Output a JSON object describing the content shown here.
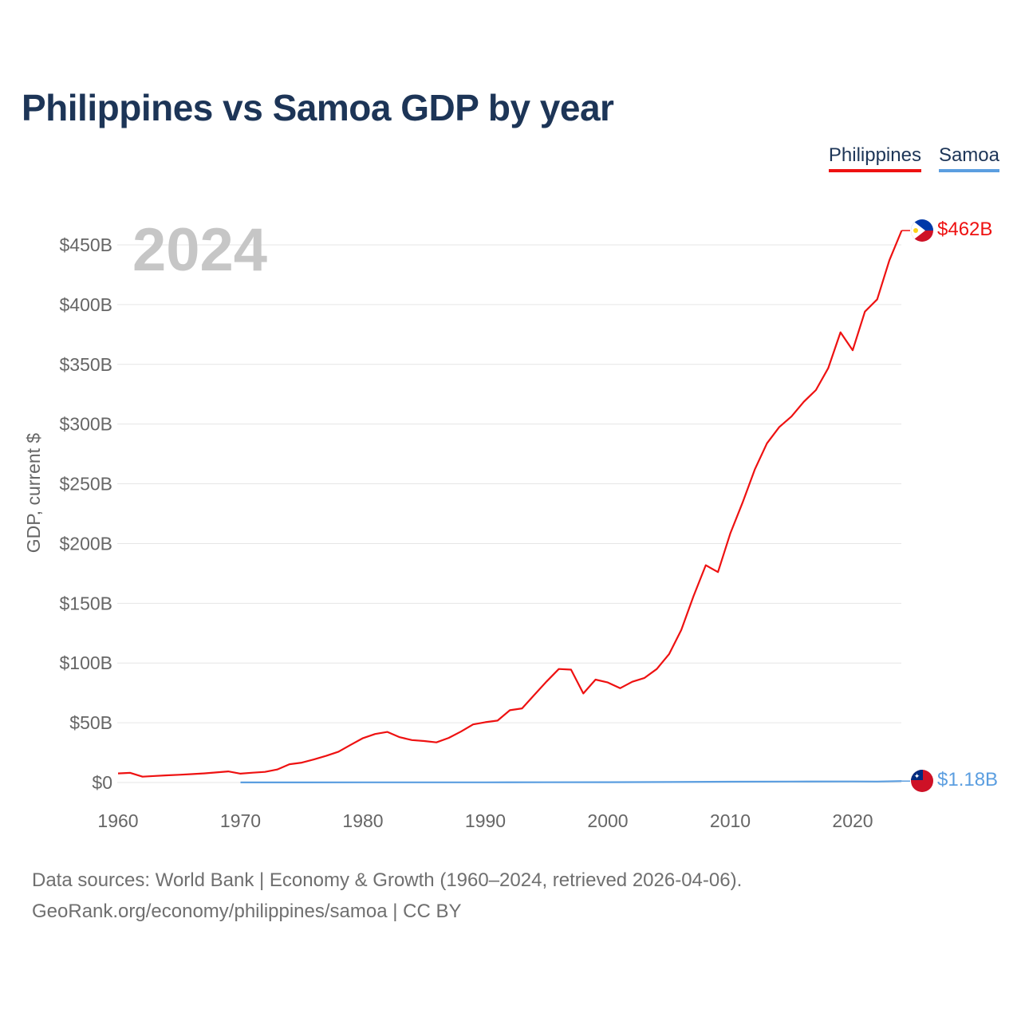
{
  "title": "Philippines vs Samoa GDP by year",
  "legend": {
    "philippines": "Philippines",
    "samoa": "Samoa"
  },
  "footer": {
    "line1": "Data sources: World Bank | Economy & Growth (1960–2024, retrieved 2026-04-06).",
    "line2": "GeoRank.org/economy/philippines/samoa | CC BY"
  },
  "colors": {
    "philippines": "#ee1111",
    "samoa": "#5b9ee0",
    "grid": "#e6e6e6"
  },
  "chart_data": {
    "type": "line",
    "title": "Philippines vs Samoa GDP by year",
    "xlabel": "",
    "ylabel": "GDP, current $",
    "year_label": "2024",
    "xlim": [
      1960,
      2024
    ],
    "ylim": [
      0,
      462
    ],
    "x_ticks": [
      1960,
      1970,
      1980,
      1990,
      2000,
      2010,
      2020
    ],
    "x_tick_labels": [
      "1960",
      "1970",
      "1980",
      "1990",
      "2000",
      "2010",
      "2020"
    ],
    "y_ticks": [
      0,
      50,
      100,
      150,
      200,
      250,
      300,
      350,
      400,
      450
    ],
    "y_tick_labels": [
      "$0",
      "$50B",
      "$100B",
      "$150B",
      "$200B",
      "$250B",
      "$300B",
      "$350B",
      "$400B",
      "$450B"
    ],
    "end_labels": {
      "philippines": "$462B",
      "samoa": "$1.18B"
    },
    "flag_icons": {
      "philippines": "philippines-flag-icon",
      "samoa": "samoa-flag-icon"
    },
    "series": [
      {
        "name": "Philippines",
        "color": "#ee1111",
        "x": [
          1960,
          1961,
          1962,
          1963,
          1964,
          1965,
          1966,
          1967,
          1968,
          1969,
          1970,
          1971,
          1972,
          1973,
          1974,
          1975,
          1976,
          1977,
          1978,
          1979,
          1980,
          1981,
          1982,
          1983,
          1984,
          1985,
          1986,
          1987,
          1988,
          1989,
          1990,
          1991,
          1992,
          1993,
          1994,
          1995,
          1996,
          1997,
          1998,
          1999,
          2000,
          2001,
          2002,
          2003,
          2004,
          2005,
          2006,
          2007,
          2008,
          2009,
          2010,
          2011,
          2012,
          2013,
          2014,
          2015,
          2016,
          2017,
          2018,
          2019,
          2020,
          2021,
          2022,
          2023,
          2024
        ],
        "values": [
          7.6,
          8.1,
          4.9,
          5.5,
          6.0,
          6.5,
          7.0,
          7.6,
          8.4,
          9.3,
          7.4,
          8.2,
          8.9,
          10.9,
          15.3,
          16.6,
          19.3,
          22.3,
          25.8,
          31.5,
          37.1,
          40.6,
          42.3,
          37.9,
          35.5,
          34.7,
          33.6,
          37.3,
          42.6,
          48.6,
          50.5,
          51.8,
          60.5,
          62.0,
          73.4,
          84.6,
          95.0,
          94.5,
          74.5,
          86.1,
          83.7,
          78.9,
          84.3,
          87.5,
          95.0,
          107.4,
          127.7,
          155.9,
          181.9,
          176.1,
          208.4,
          234.2,
          261.9,
          283.9,
          297.5,
          306.4,
          318.6,
          328.5,
          346.8,
          376.8,
          361.8,
          394.1,
          404.4,
          437.1,
          462.0
        ]
      },
      {
        "name": "Samoa",
        "color": "#5b9ee0",
        "x": [
          1970,
          1975,
          1980,
          1985,
          1990,
          1995,
          2000,
          2005,
          2010,
          2015,
          2020,
          2022,
          2024
        ],
        "values": [
          0.05,
          0.08,
          0.15,
          0.12,
          0.12,
          0.2,
          0.24,
          0.43,
          0.64,
          0.83,
          0.87,
          0.83,
          1.18
        ]
      }
    ]
  }
}
